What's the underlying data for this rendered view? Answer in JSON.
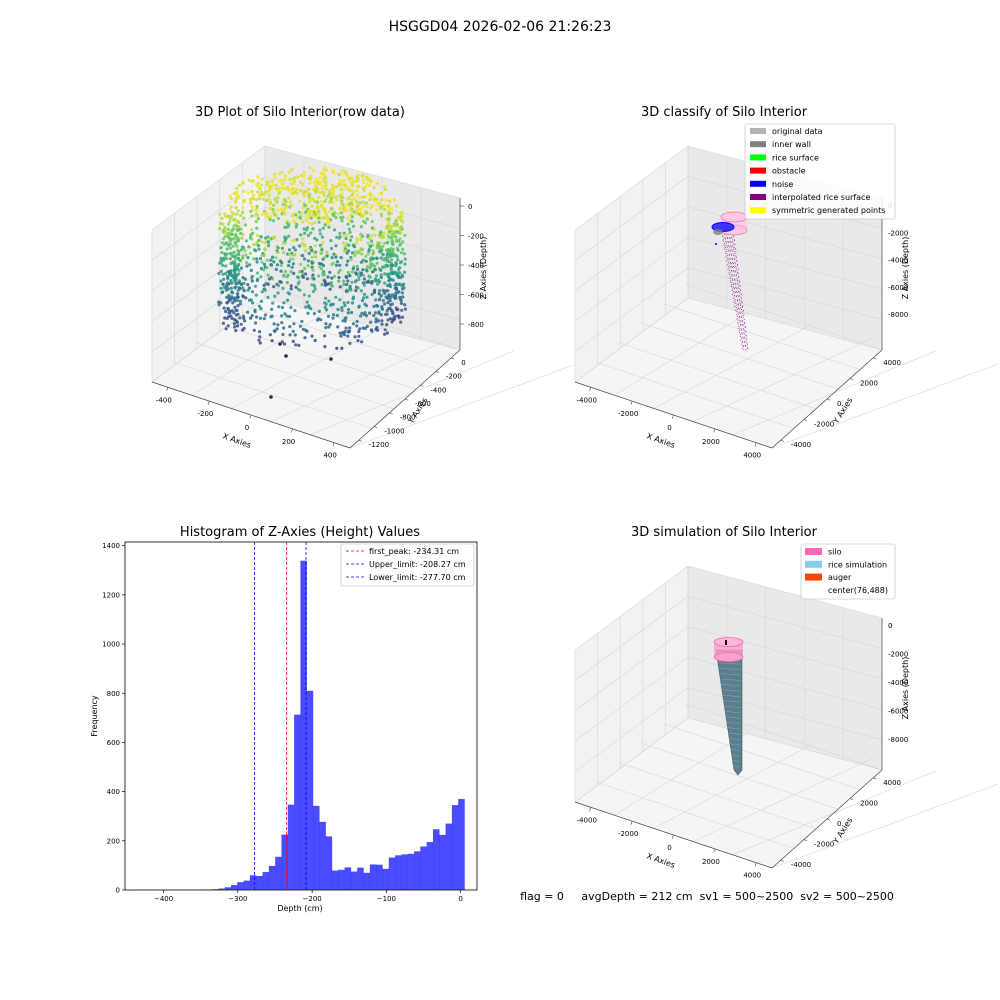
{
  "figure": {
    "suptitle": "HSGGD04 2026-02-06 21:26:23",
    "status_line": "flag = 0     avgDepth = 212 cm  sv1 = 500~2500  sv2 = 500~2500"
  },
  "chart_data": [
    {
      "type": "scatter",
      "dims": 3,
      "title": "3D Plot of Silo Interior(row data)",
      "xlabel": "X Axies",
      "ylabel": "Y Axies",
      "zlabel": "Z Axies (Depth)",
      "x_ticks": [
        "-400",
        "-200",
        "0",
        "200",
        "400"
      ],
      "y_ticks": [
        "0",
        "-200",
        "-400",
        "-600",
        "-800",
        "-1000",
        "-1200"
      ],
      "z_ticks": [
        "0",
        "-200",
        "-400",
        "-600",
        "-800"
      ],
      "xlim": [
        -480,
        480
      ],
      "ylim": [
        -1300,
        80
      ],
      "zlim": [
        -950,
        30
      ],
      "colormap": "viridis",
      "description_series": [
        {
          "x": 0,
          "y": -420,
          "z_top": -10,
          "z_bottom": -820,
          "radius_x": 370,
          "radius_y": 360
        },
        {
          "x": -330,
          "y": -1100,
          "z": -900
        },
        {
          "x": -140,
          "y": -800,
          "z": -850
        }
      ]
    },
    {
      "type": "scatter",
      "dims": 3,
      "title": "3D classify of Silo Interior",
      "xlabel": "X Axies",
      "ylabel": "Y Axies",
      "zlabel": "Z Axies (Depth)",
      "x_ticks": [
        "-4000",
        "-2000",
        "0",
        "2000",
        "4000"
      ],
      "y_ticks": [
        "4000",
        "2000",
        "0",
        "-2000",
        "-4000"
      ],
      "z_ticks": [
        "0",
        "-2000",
        "-4000",
        "-6000",
        "-8000"
      ],
      "legend_position": "top-right",
      "legend": [
        {
          "label": "original data",
          "color": "#b4b4b4"
        },
        {
          "label": "inner wall",
          "color": "#808080"
        },
        {
          "label": "rice surface",
          "color": "#00ff00"
        },
        {
          "label": "obstacle",
          "color": "#ff0000"
        },
        {
          "label": "noise",
          "color": "#0000ff"
        },
        {
          "label": "interpolated rice surface",
          "color": "#800080"
        },
        {
          "label": "symmetric generated points",
          "color": "#ffff00"
        }
      ]
    },
    {
      "type": "bar",
      "title": "Histogram of Z-Axies (Height) Values",
      "xlabel": "Depth (cm)",
      "ylabel": "Frequency",
      "xlim": [
        -452,
        22
      ],
      "ylim": [
        0,
        1415
      ],
      "x_ticks": [
        -400,
        -300,
        -200,
        -100,
        0
      ],
      "y_ticks": [
        0,
        200,
        400,
        600,
        800,
        1000,
        1200,
        1400
      ],
      "bar_color": "#0000ff",
      "bin_width": 8.5,
      "bin_start": -436.8,
      "values": [
        1,
        1,
        1,
        1,
        1,
        1,
        1,
        1,
        1,
        1,
        1,
        2,
        3,
        6,
        11,
        20,
        32,
        38,
        60,
        57,
        73,
        98,
        135,
        225,
        347,
        713,
        1339,
        810,
        342,
        277,
        218,
        79,
        82,
        92,
        75,
        91,
        70,
        104,
        103,
        86,
        132,
        141,
        145,
        147,
        157,
        177,
        195,
        247,
        224,
        270,
        345,
        370
      ],
      "vlines": [
        {
          "label": "first_peak: -234.31 cm",
          "x": -234.31,
          "color": "#ff0000"
        },
        {
          "label": "Upper_limit: -208.27 cm",
          "x": -208.27,
          "color": "#0000ff"
        },
        {
          "label": "Lower_limit: -277.70 cm",
          "x": -277.7,
          "color": "#0000ff"
        }
      ],
      "legend_position": "top-right"
    },
    {
      "type": "scatter",
      "dims": 3,
      "title": "3D simulation of Silo Interior",
      "xlabel": "X Axies",
      "ylabel": "Y Axies",
      "zlabel": "Z Axies (Depth)",
      "x_ticks": [
        "-4000",
        "-2000",
        "0",
        "2000",
        "4000"
      ],
      "y_ticks": [
        "4000",
        "2000",
        "0",
        "-2000",
        "-4000"
      ],
      "z_ticks": [
        "0",
        "-2000",
        "-4000",
        "-6000",
        "-8000"
      ],
      "legend_position": "top-right",
      "legend": [
        {
          "label": "silo",
          "color": "#ff69b4"
        },
        {
          "label": "rice simulation",
          "color": "#87ceeb"
        },
        {
          "label": "auger",
          "color": "#ff4500"
        },
        {
          "label": "center(76,488)",
          "color": "#ffffff"
        }
      ]
    }
  ]
}
